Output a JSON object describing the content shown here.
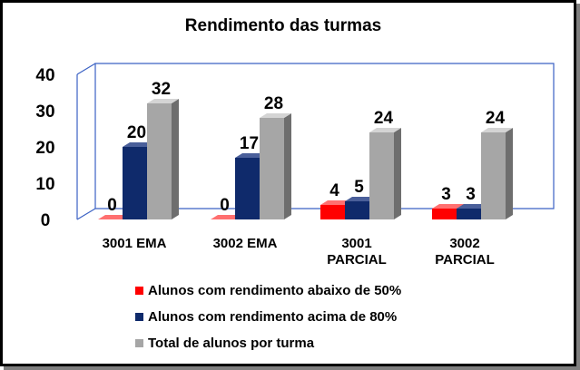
{
  "chart_data": {
    "type": "bar",
    "title": "Rendimento das turmas",
    "categories": [
      [
        "3001 EMA"
      ],
      [
        "3002 EMA"
      ],
      [
        "3001",
        "PARCIAL"
      ],
      [
        "3002",
        "PARCIAL"
      ]
    ],
    "series": [
      {
        "name": "Alunos com rendimento abaixo de 50%",
        "values": [
          0,
          0,
          4,
          3
        ],
        "color": "#ff0000",
        "side_color": "#9a0000",
        "top_color": "#ff7070"
      },
      {
        "name": "Alunos com rendimento acima de 80%",
        "values": [
          20,
          17,
          5,
          3
        ],
        "color": "#0f2a6b",
        "side_color": "#081a45",
        "top_color": "#4a5f9a"
      },
      {
        "name": "Total de alunos por turma",
        "values": [
          32,
          28,
          24,
          24
        ],
        "color": "#a6a6a6",
        "side_color": "#6e6e6e",
        "top_color": "#d4d4d4"
      }
    ],
    "y_ticks": [
      "0",
      "10",
      "20",
      "30",
      "40"
    ],
    "ylim": [
      0,
      40
    ],
    "legend_position": "bottom",
    "grid": false
  }
}
